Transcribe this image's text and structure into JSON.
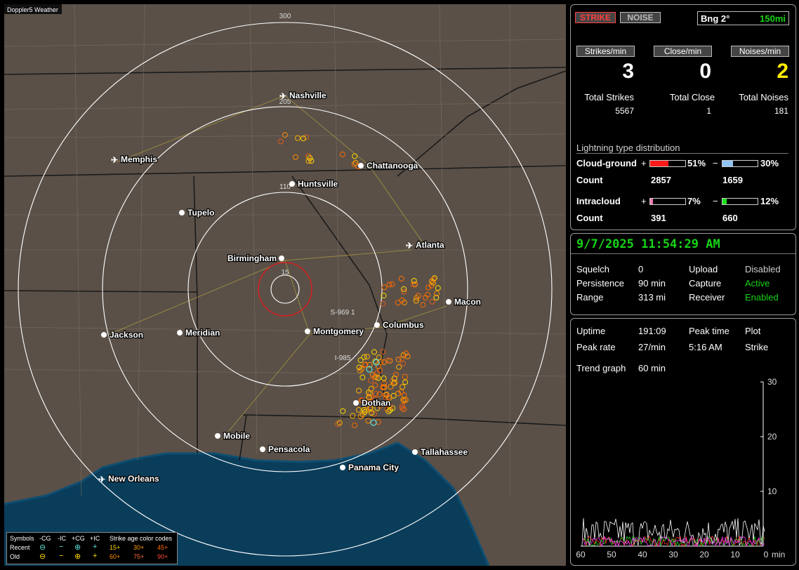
{
  "map": {
    "brand": "Doppler5 Weather",
    "rings": [
      "300",
      "205",
      "110",
      "15"
    ],
    "road_labels": [
      "S-969 1",
      "I-985"
    ],
    "cities": [
      {
        "name": "Nashville",
        "airport": true
      },
      {
        "name": "Memphis",
        "airport": true
      },
      {
        "name": "Chattanooga",
        "airport": false
      },
      {
        "name": "Huntsville",
        "airport": false
      },
      {
        "name": "Tupelo",
        "airport": false
      },
      {
        "name": "Atlanta",
        "airport": true
      },
      {
        "name": "Birmingham",
        "airport": false
      },
      {
        "name": "Macon",
        "airport": false
      },
      {
        "name": "Columbus",
        "airport": false
      },
      {
        "name": "Montgomery",
        "airport": false
      },
      {
        "name": "Jackson",
        "airport": false
      },
      {
        "name": "Meridian",
        "airport": false
      },
      {
        "name": "Dothan",
        "airport": false
      },
      {
        "name": "Mobile",
        "airport": false
      },
      {
        "name": "Pensacola",
        "airport": false
      },
      {
        "name": "Tallahassee",
        "airport": false
      },
      {
        "name": "Panama City",
        "airport": false
      },
      {
        "name": "New Orleans",
        "airport": true
      }
    ],
    "legend": {
      "symbols_label": "Symbols",
      "headers": [
        "-CG",
        "-IC",
        "+CG",
        "+IC"
      ],
      "age_title": "Strike age color codes",
      "recent_label": "Recent",
      "old_label": "Old",
      "recent_ages": [
        "15+",
        "30+",
        "45+"
      ],
      "old_ages": [
        "60+",
        "75+",
        "90+"
      ],
      "age_colors": [
        "#ffd800",
        "#ff9a00",
        "#ff6a00"
      ]
    }
  },
  "stats": {
    "strike_label": "STRIKE",
    "noise_label": "NOISE",
    "bearing": "Bng 2°",
    "range": "150mi",
    "strikes_min_label": "Strikes/min",
    "close_min_label": "Close/min",
    "noises_min_label": "Noises/min",
    "strikes_min": "3",
    "close_min": "0",
    "noises_min": "2",
    "total_strikes_label": "Total Strikes",
    "total_close_label": "Total Close",
    "total_noises_label": "Total Noises",
    "total_strikes": "5567",
    "total_close": "1",
    "total_noises": "181",
    "dist_title": "Lightning type distribution",
    "cg_label": "Cloud-ground",
    "ic_label": "Intracloud",
    "count_label": "Count",
    "plus": "+",
    "minus": "−",
    "cg_pos_pct": "51%",
    "cg_neg_pct": "30%",
    "ic_pos_pct": "7%",
    "ic_neg_pct": "12%",
    "cg_pos_fraction": 0.51,
    "cg_neg_fraction": 0.3,
    "ic_pos_fraction": 0.07,
    "ic_neg_fraction": 0.12,
    "cg_pos_count": "2857",
    "cg_neg_count": "1659",
    "ic_pos_count": "391",
    "ic_neg_count": "660"
  },
  "status": {
    "datetime": "9/7/2025 11:54:29 AM",
    "squelch_label": "Squelch",
    "squelch": "0",
    "persistence_label": "Persistence",
    "persistence": "90 min",
    "range_label": "Range",
    "range": "313 mi",
    "upload_label": "Upload",
    "upload": "Disabled",
    "capture_label": "Capture",
    "capture": "Active",
    "receiver_label": "Receiver",
    "receiver": "Enabled"
  },
  "trend": {
    "uptime_label": "Uptime",
    "uptime": "191:09",
    "peak_time_label": "Peak time",
    "peak_time": "5:16 AM",
    "plot_label": "Plot",
    "plot": "Strike",
    "peak_rate_label": "Peak rate",
    "peak_rate": "27/min",
    "graph_label": "Trend graph",
    "graph_span": "60 min",
    "y_ticks": [
      "30",
      "20",
      "10"
    ],
    "x_ticks": [
      "60",
      "50",
      "40",
      "30",
      "20",
      "10",
      "0"
    ],
    "x_unit": "min"
  }
}
